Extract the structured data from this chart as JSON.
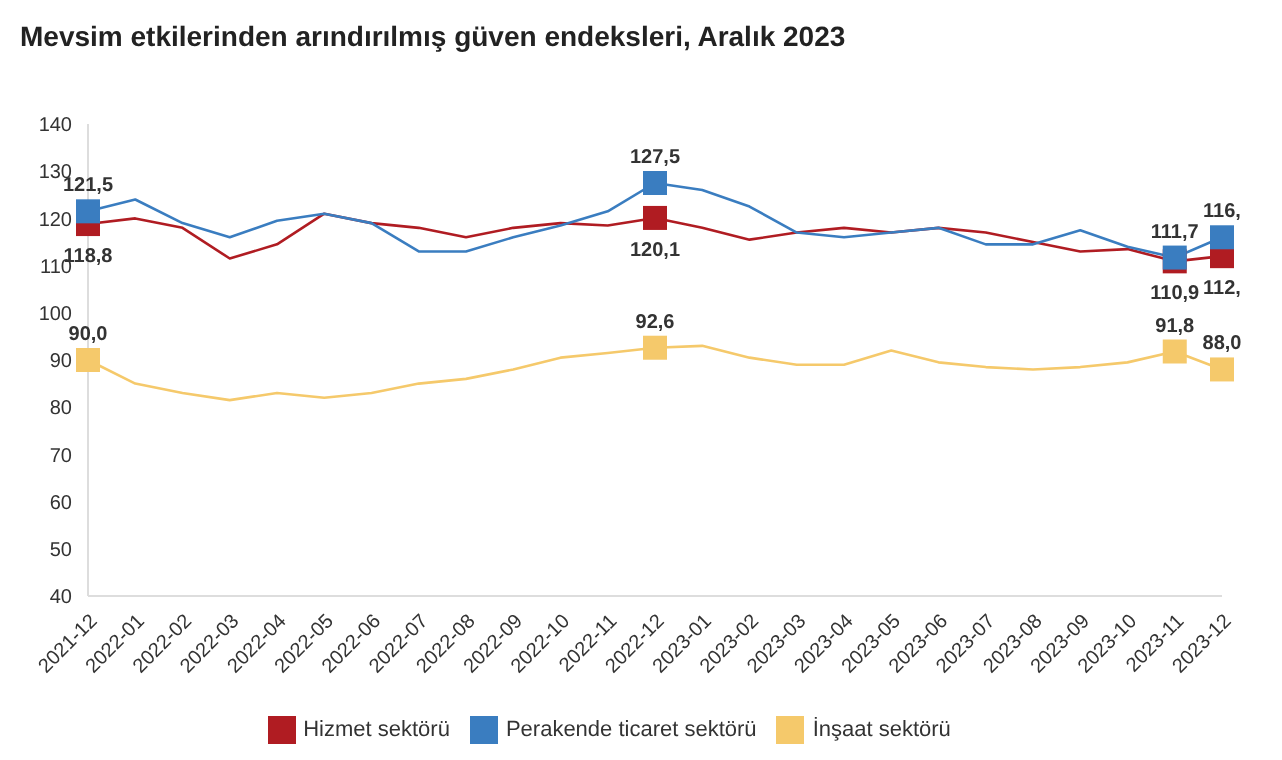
{
  "chart_data": {
    "type": "line",
    "title": "Mevsim etkilerinden arındırılmış güven endeksleri, Aralık 2023",
    "categories": [
      "2021-12",
      "2022-01",
      "2022-02",
      "2022-03",
      "2022-04",
      "2022-05",
      "2022-06",
      "2022-07",
      "2022-08",
      "2022-09",
      "2022-10",
      "2022-11",
      "2022-12",
      "2023-01",
      "2023-02",
      "2023-03",
      "2023-04",
      "2023-05",
      "2023-06",
      "2023-07",
      "2023-08",
      "2023-09",
      "2023-10",
      "2023-11",
      "2023-12"
    ],
    "series": [
      {
        "name": "Hizmet sektörü",
        "color": "#b01c22",
        "values": [
          118.8,
          120,
          118,
          111.5,
          114.5,
          121,
          119,
          118,
          116,
          118,
          119,
          118.5,
          120.1,
          118,
          115.5,
          117,
          118,
          117,
          118,
          117,
          115,
          113,
          113.5,
          110.9,
          112
        ],
        "value_labels": [
          "118,8",
          null,
          null,
          null,
          null,
          null,
          null,
          null,
          null,
          null,
          null,
          null,
          "120,1",
          null,
          null,
          null,
          null,
          null,
          null,
          null,
          null,
          null,
          null,
          "110,9",
          "112,"
        ]
      },
      {
        "name": "Perakende ticaret sektörü",
        "color": "#3a7dc0",
        "values": [
          121.5,
          124,
          119,
          116,
          119.5,
          121,
          119,
          113,
          113,
          116,
          118.5,
          121.5,
          127.5,
          126,
          122.5,
          117,
          116,
          117,
          118,
          114.5,
          114.5,
          117.5,
          114,
          111.7,
          116
        ],
        "value_labels": [
          "121,5",
          null,
          null,
          null,
          null,
          null,
          null,
          null,
          null,
          null,
          null,
          null,
          "127,5",
          null,
          null,
          null,
          null,
          null,
          null,
          null,
          null,
          null,
          null,
          "111,7",
          "116,"
        ]
      },
      {
        "name": "İnşaat sektörü",
        "color": "#f5c96b",
        "values": [
          90,
          85,
          83,
          81.5,
          83,
          82,
          83,
          85,
          86,
          88,
          90.5,
          91.5,
          92.6,
          93,
          90.5,
          89,
          89,
          92,
          89.5,
          88.5,
          88,
          88.5,
          89.5,
          91.8,
          88
        ],
        "value_labels": [
          "90,0",
          null,
          null,
          null,
          null,
          null,
          null,
          null,
          null,
          null,
          null,
          null,
          "92,6",
          null,
          null,
          null,
          null,
          null,
          null,
          null,
          null,
          null,
          null,
          "91,8",
          "88,0"
        ]
      }
    ],
    "ylim": [
      40,
      140
    ],
    "yticks": [
      40,
      50,
      60,
      70,
      80,
      90,
      100,
      110,
      120,
      130,
      140
    ],
    "grid": false,
    "legend": "bottom",
    "line_style": "solid"
  }
}
